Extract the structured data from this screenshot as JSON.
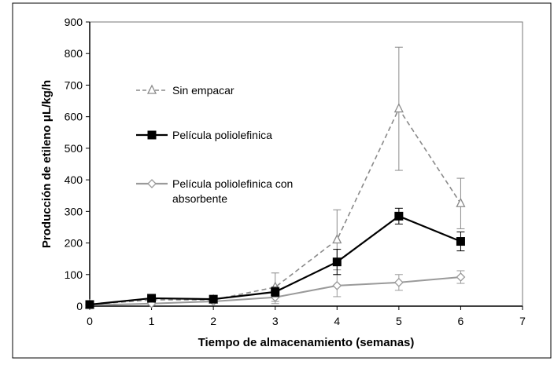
{
  "chart_data": {
    "type": "line",
    "title": "",
    "xlabel": "Tiempo de almacenamiento (semanas)",
    "ylabel": "Producción de etileno μL/kg/h",
    "xlim": [
      0,
      7
    ],
    "ylim": [
      0,
      900
    ],
    "x_ticks": [
      0,
      1,
      2,
      3,
      4,
      5,
      6,
      7
    ],
    "y_ticks": [
      0,
      100,
      200,
      300,
      400,
      500,
      600,
      700,
      800,
      900
    ],
    "grid": false,
    "legend_position": "left inside plot",
    "series": [
      {
        "name": "Sin empacar",
        "color": "#8a8a8a",
        "line_style": "dashed",
        "marker": "open-triangle",
        "x": [
          0,
          1,
          2,
          3,
          4,
          5,
          6
        ],
        "y": [
          5,
          20,
          20,
          60,
          210,
          625,
          325
        ],
        "error": [
          3,
          8,
          8,
          45,
          95,
          195,
          80
        ]
      },
      {
        "name": "Película poliolefinica",
        "color": "#000000",
        "line_style": "solid",
        "marker": "filled-square",
        "x": [
          0,
          1,
          2,
          3,
          4,
          5,
          6
        ],
        "y": [
          5,
          25,
          22,
          45,
          140,
          285,
          205
        ],
        "error": [
          3,
          10,
          6,
          15,
          40,
          25,
          30
        ]
      },
      {
        "name": "Película poliolefinica con absorbente",
        "name_lines": [
          "Película poliolefinica con",
          "absorbente"
        ],
        "color": "#9a9a9a",
        "line_style": "solid",
        "marker": "open-diamond",
        "x": [
          0,
          1,
          2,
          3,
          4,
          5,
          6
        ],
        "y": [
          3,
          8,
          15,
          28,
          65,
          75,
          92
        ],
        "error": [
          2,
          5,
          5,
          20,
          35,
          25,
          20
        ]
      }
    ]
  }
}
